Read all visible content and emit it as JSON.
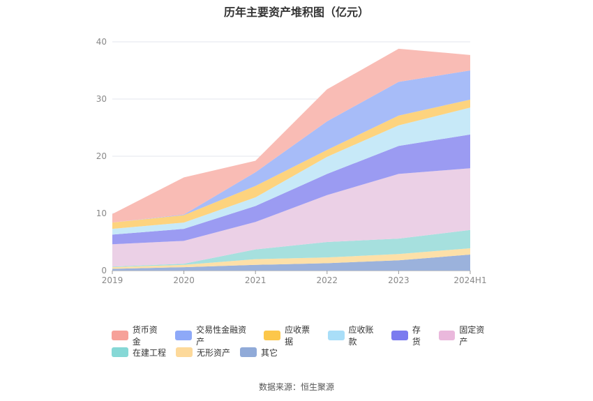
{
  "chart_data": {
    "type": "area",
    "stacked": true,
    "title": "历年主要资产堆积图（亿元）",
    "xlabel": "",
    "ylabel": "",
    "categories": [
      "2019",
      "2020",
      "2021",
      "2022",
      "2023",
      "2024H1"
    ],
    "y_ticks": [
      0,
      10,
      20,
      30,
      40
    ],
    "ylim": [
      0,
      42
    ],
    "legend_position": "bottom",
    "series": [
      {
        "name": "其它",
        "color": "#9bb2dc",
        "values": [
          0.3,
          0.6,
          1.0,
          1.3,
          1.8,
          2.8
        ]
      },
      {
        "name": "无形资产",
        "color": "#fde0a8",
        "values": [
          0.3,
          0.4,
          1.0,
          1.0,
          1.1,
          1.1
        ]
      },
      {
        "name": "在建工程",
        "color": "#a6e0de",
        "values": [
          0.1,
          0.2,
          1.7,
          2.7,
          2.7,
          3.2
        ]
      },
      {
        "name": "固定资产",
        "color": "#ebd0e6",
        "values": [
          3.9,
          4.0,
          4.8,
          8.2,
          11.3,
          10.8
        ]
      },
      {
        "name": "存货",
        "color": "#9b9bf2",
        "values": [
          1.7,
          2.1,
          2.8,
          3.7,
          4.9,
          5.9
        ]
      },
      {
        "name": "应收账款",
        "color": "#c7e9f8",
        "values": [
          1.0,
          1.1,
          1.5,
          3.0,
          3.6,
          4.7
        ]
      },
      {
        "name": "应收票据",
        "color": "#fdd37e",
        "values": [
          1.1,
          1.3,
          2.0,
          1.2,
          1.7,
          1.4
        ]
      },
      {
        "name": "交易性金融资产",
        "color": "#a7bcf8",
        "values": [
          0.0,
          0.1,
          2.4,
          5.0,
          5.9,
          5.1
        ]
      },
      {
        "name": "货币资金",
        "color": "#f9bcb5",
        "values": [
          1.5,
          6.5,
          2.0,
          5.6,
          5.8,
          2.7
        ]
      }
    ],
    "legend": [
      {
        "name": "货币资金",
        "color": "#f6a199"
      },
      {
        "name": "交易性金融资产",
        "color": "#8ea9f8"
      },
      {
        "name": "应收票据",
        "color": "#fcc74a"
      },
      {
        "name": "应收账款",
        "color": "#a9def8"
      },
      {
        "name": "存货",
        "color": "#7b7bef"
      },
      {
        "name": "固定资产",
        "color": "#eab8dc"
      },
      {
        "name": "在建工程",
        "color": "#86d8d6"
      },
      {
        "name": "无形资产",
        "color": "#fdd99a"
      },
      {
        "name": "其它",
        "color": "#90aad8"
      }
    ]
  },
  "source": "数据来源：恒生聚源"
}
